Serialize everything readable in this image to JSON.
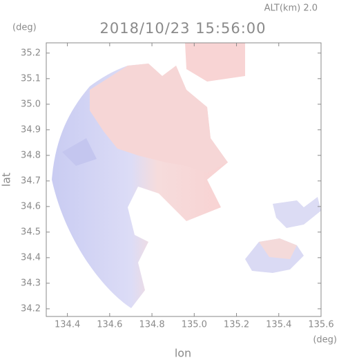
{
  "chart_data": {
    "type": "map",
    "title": "2018/10/23 15:56:00",
    "annotation": "ALT(km) 2.0",
    "x_label": "lon",
    "y_label": "lat",
    "x_unit": "(deg)",
    "y_unit": "(deg)",
    "xlim": [
      134.3,
      135.6
    ],
    "xticks": [
      134.4,
      134.6,
      134.8,
      {
        "value": 135,
        "label": "135.0"
      },
      135.2,
      135.4,
      135.6
    ],
    "ylim": [
      34.17,
      35.24
    ],
    "yticks": [
      34.2,
      34.3,
      34.4,
      34.5,
      34.6,
      34.7,
      34.8,
      34.9,
      {
        "value": 35,
        "label": "35.0"
      },
      35.1,
      35.2
    ]
  }
}
